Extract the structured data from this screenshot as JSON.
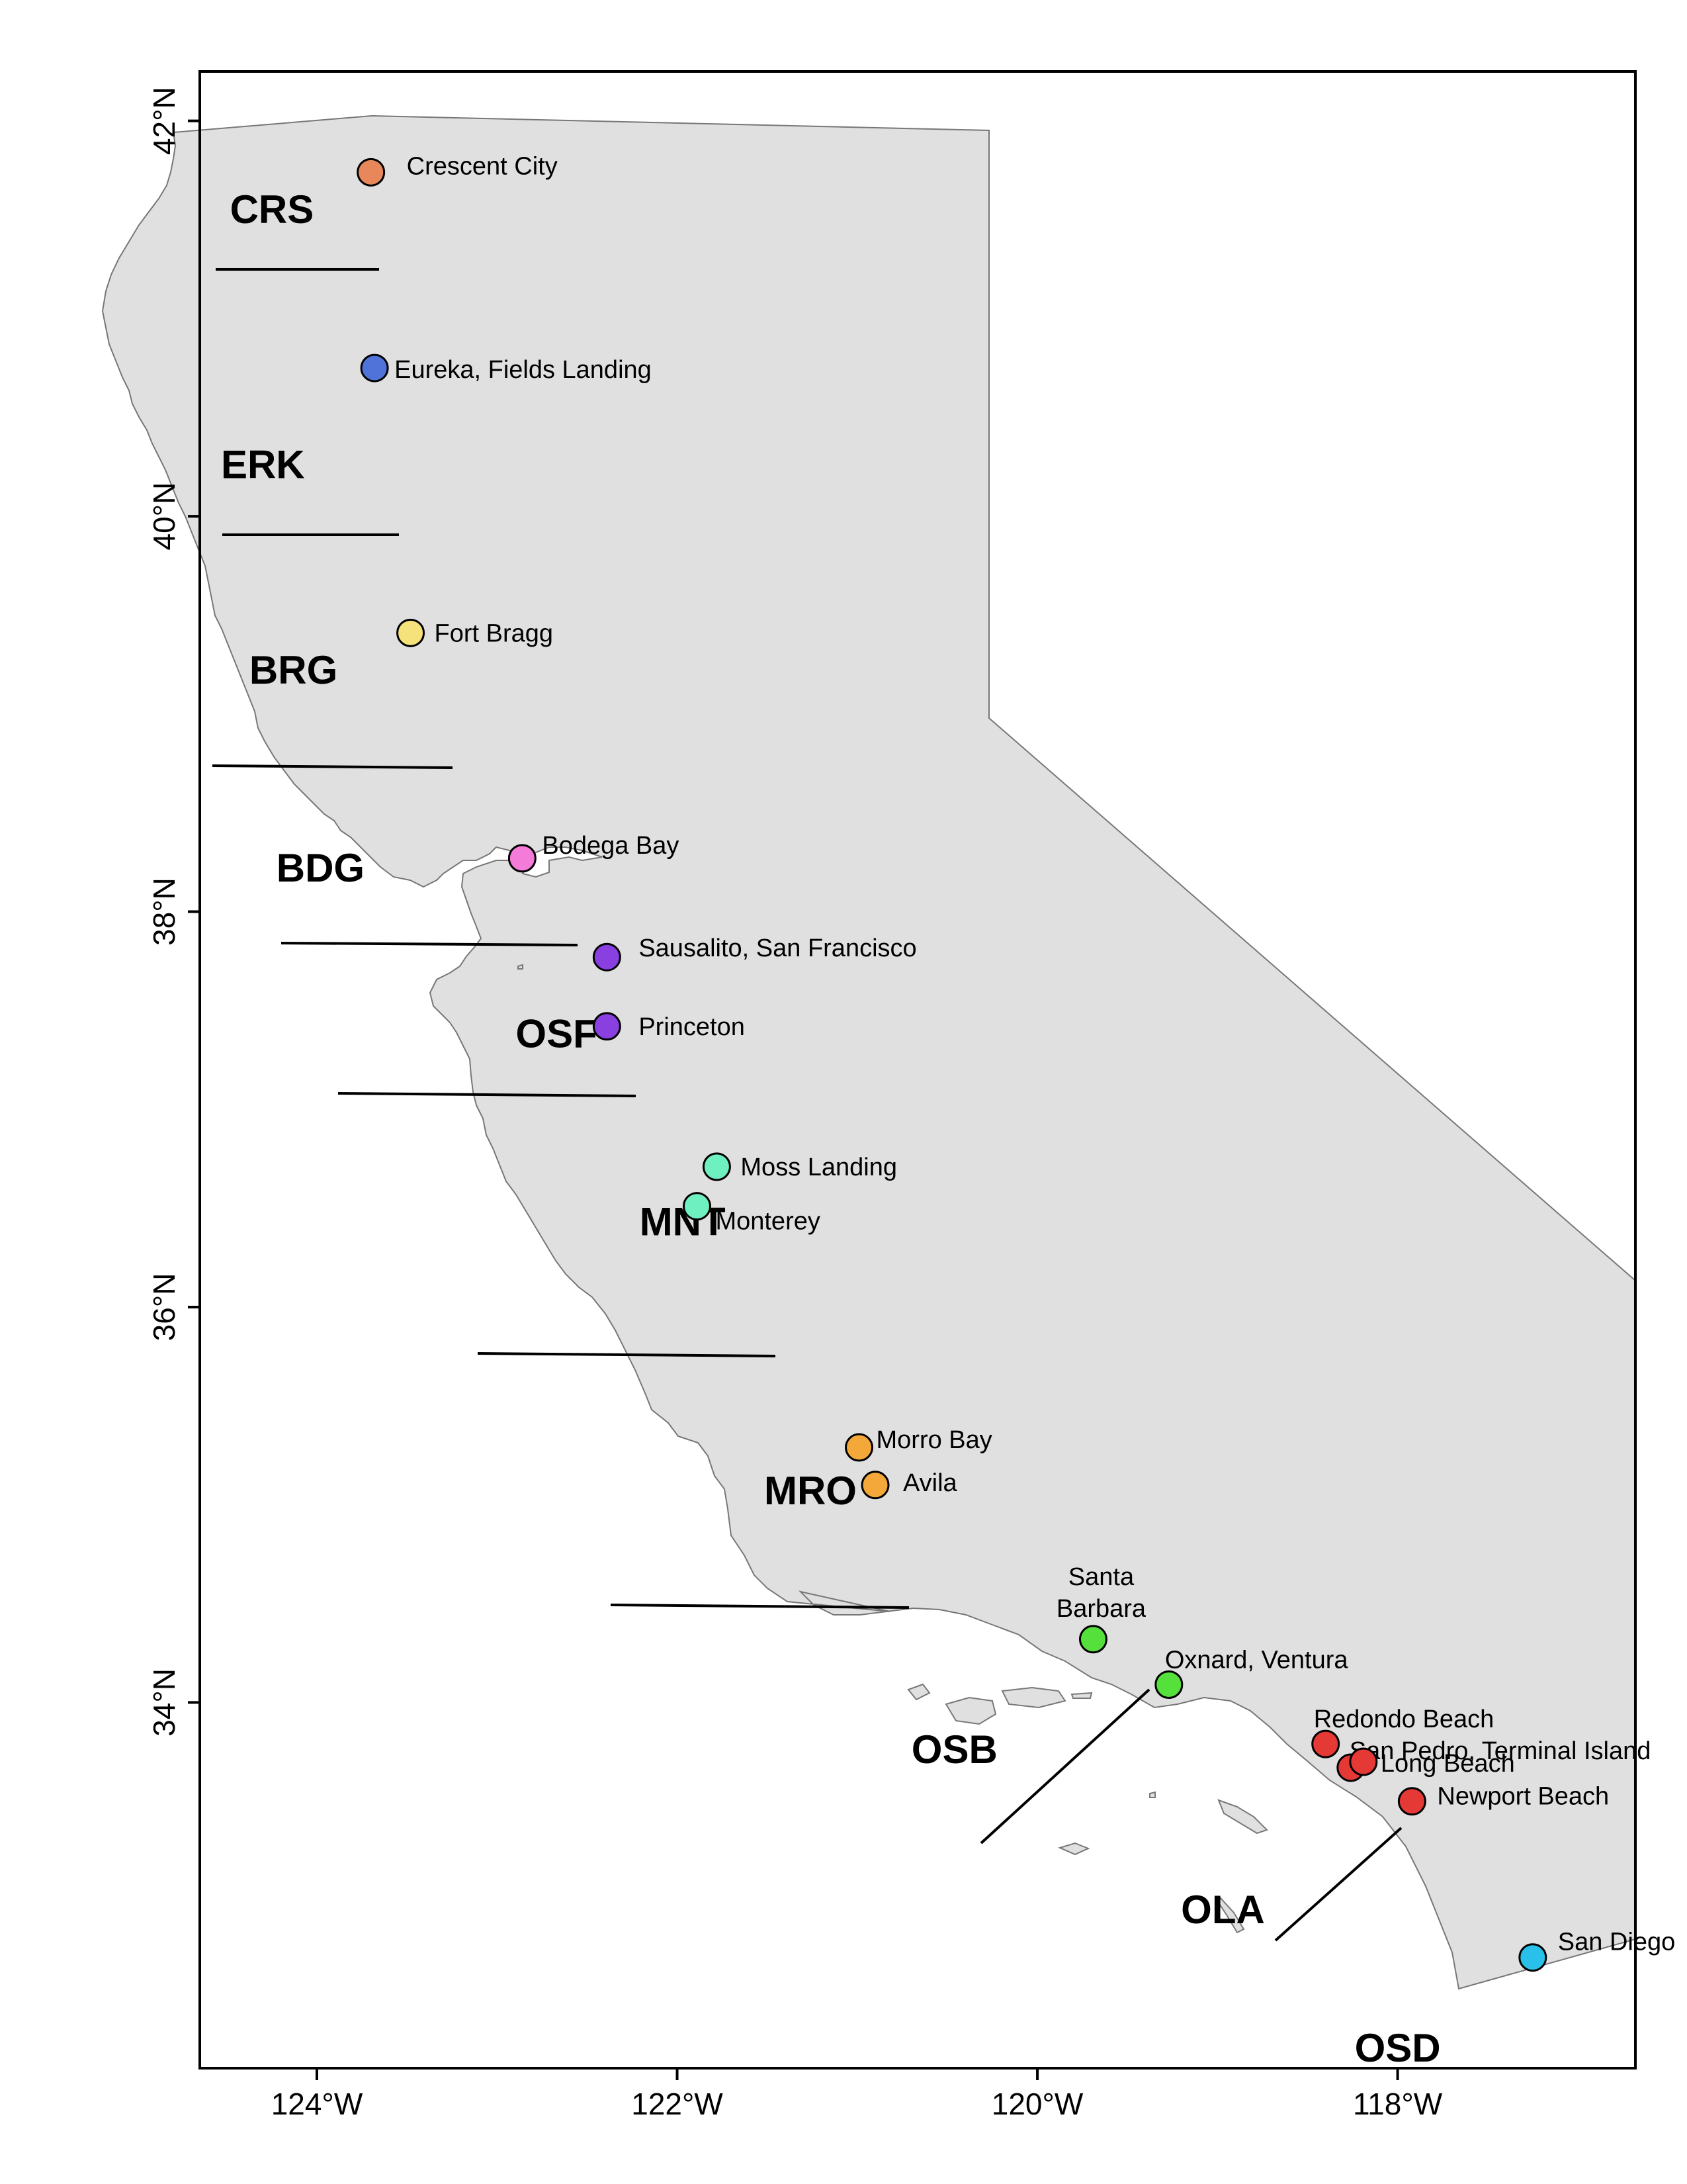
{
  "axes": {
    "longitude_ticks": [
      {
        "value": -124,
        "label": "124°W"
      },
      {
        "value": -122,
        "label": "122°W"
      },
      {
        "value": -120,
        "label": "120°W"
      },
      {
        "value": -118,
        "label": "118°W"
      }
    ],
    "latitude_ticks": [
      {
        "value": 42,
        "label": "42°N"
      },
      {
        "value": 40,
        "label": "40°N"
      },
      {
        "value": 38,
        "label": "38°N"
      },
      {
        "value": 36,
        "label": "36°N"
      },
      {
        "value": 34,
        "label": "34°N"
      }
    ],
    "lon_range": [
      -124.65,
      -116.68
    ],
    "lat_range": [
      32.15,
      42.25
    ]
  },
  "colors": {
    "land": "#e0e0e0",
    "coast": "#777777",
    "frame": "#000000"
  },
  "regions": [
    {
      "code": "CRS",
      "lon": -124.25,
      "lat": 41.55
    },
    {
      "code": "ERK",
      "lon": -124.3,
      "lat": 40.26
    },
    {
      "code": "BRG",
      "lon": -124.13,
      "lat": 39.22
    },
    {
      "code": "BDG",
      "lon": -123.98,
      "lat": 38.22
    },
    {
      "code": "OSF",
      "lon": -122.67,
      "lat": 37.38
    },
    {
      "code": "MNT",
      "lon": -121.97,
      "lat": 36.43
    },
    {
      "code": "MRO",
      "lon": -121.26,
      "lat": 35.07
    },
    {
      "code": "OSB",
      "lon": -120.46,
      "lat": 33.76
    },
    {
      "code": "OLA",
      "lon": -118.97,
      "lat": 32.95
    },
    {
      "code": "OSD",
      "lon": -118.0,
      "lat": 32.25
    }
  ],
  "ports": [
    {
      "name": "Crescent City",
      "lon": -123.7,
      "lat": 41.74,
      "color": "#e8875a"
    },
    {
      "name": "Eureka, Fields Landing",
      "lon": -123.68,
      "lat": 40.75,
      "color": "#4f73d9"
    },
    {
      "name": "Fort Bragg",
      "lon": -123.48,
      "lat": 39.41,
      "color": "#f5e27a"
    },
    {
      "name": "Bodega Bay",
      "lon": -122.86,
      "lat": 38.27,
      "color": "#f57bd9"
    },
    {
      "name": "Sausalito, San Francisco",
      "lon": -122.39,
      "lat": 37.77,
      "color": "#8a3fe0"
    },
    {
      "name": "Princeton",
      "lon": -122.39,
      "lat": 37.42,
      "color": "#8a3fe0"
    },
    {
      "name": "Moss Landing",
      "lon": -121.78,
      "lat": 36.71,
      "color": "#6ff0c0"
    },
    {
      "name": "Monterey",
      "lon": -121.89,
      "lat": 36.51,
      "color": "#6ff0c0"
    },
    {
      "name": "Morro Bay",
      "lon": -120.99,
      "lat": 35.29,
      "color": "#f5a83a"
    },
    {
      "name": "Avila",
      "lon": -120.9,
      "lat": 35.1,
      "color": "#f5a83a"
    },
    {
      "name": "Santa Barbara",
      "lon": -119.69,
      "lat": 34.32,
      "color": "#55e03c"
    },
    {
      "name": "Oxnard, Ventura",
      "lon": -119.27,
      "lat": 34.09,
      "color": "#55e03c"
    },
    {
      "name": "Redondo Beach",
      "lon": -118.4,
      "lat": 33.79,
      "color": "#e53935"
    },
    {
      "name": "San Pedro, Terminal Island",
      "lon": -118.26,
      "lat": 33.67,
      "color": "#e53935"
    },
    {
      "name": "Long Beach",
      "lon": -118.19,
      "lat": 33.7,
      "color": "#e53935"
    },
    {
      "name": "Newport Beach",
      "lon": -117.92,
      "lat": 33.5,
      "color": "#e53935"
    },
    {
      "name": "San Diego",
      "lon": -117.25,
      "lat": 32.71,
      "color": "#29c0ea"
    }
  ]
}
